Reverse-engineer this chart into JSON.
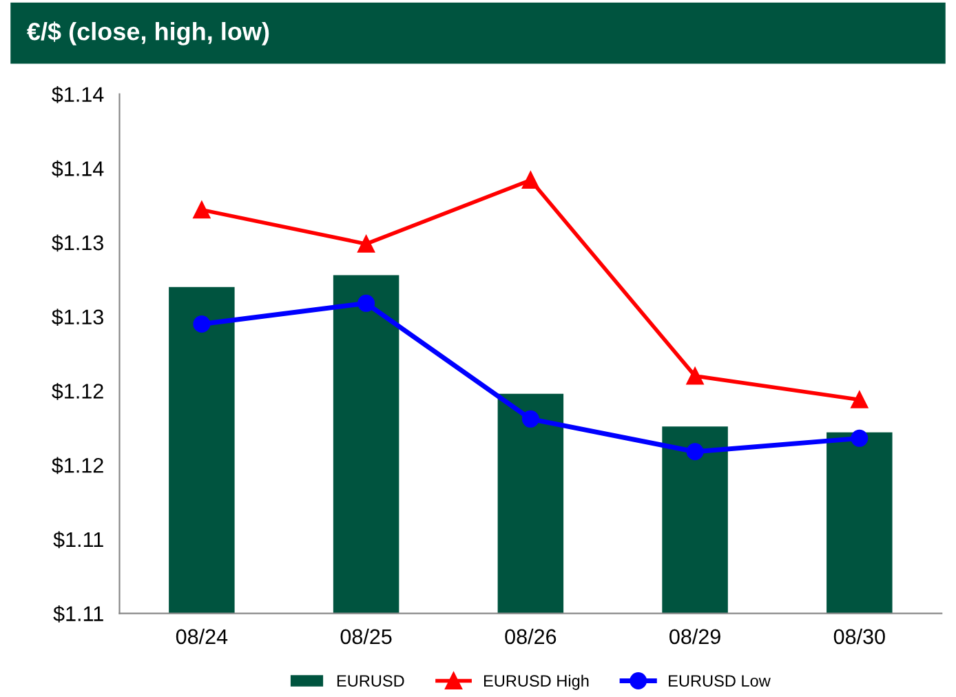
{
  "chart_data": {
    "type": "bar",
    "title": "€/$ (close, high, low)",
    "categories": [
      "08/24",
      "08/25",
      "08/26",
      "08/29",
      "08/30"
    ],
    "series": [
      {
        "name": "EURUSD",
        "color": "#00543f",
        "values": [
          1.127,
          1.1278,
          1.1198,
          1.1176,
          1.1172
        ]
      },
      {
        "name": "EURUSD High",
        "type": "line",
        "color": "#ff0000",
        "marker": "triangle",
        "values": [
          1.1322,
          1.1299,
          1.1342,
          1.121,
          1.1194
        ]
      },
      {
        "name": "EURUSD Low",
        "type": "line",
        "color": "#0000ff",
        "marker": "circle",
        "values": [
          1.1245,
          1.1259,
          1.1181,
          1.1159,
          1.1168
        ]
      }
    ],
    "ylim": [
      1.105,
      1.14
    ],
    "yticks": [
      {
        "value": 1.105,
        "label": "$1.11"
      },
      {
        "value": 1.11,
        "label": "$1.11"
      },
      {
        "value": 1.115,
        "label": "$1.12"
      },
      {
        "value": 1.12,
        "label": "$1.12"
      },
      {
        "value": 1.125,
        "label": "$1.13"
      },
      {
        "value": 1.13,
        "label": "$1.13"
      },
      {
        "value": 1.135,
        "label": "$1.14"
      },
      {
        "value": 1.14,
        "label": "$1.14"
      }
    ],
    "grid": false,
    "legend": "bottom"
  }
}
